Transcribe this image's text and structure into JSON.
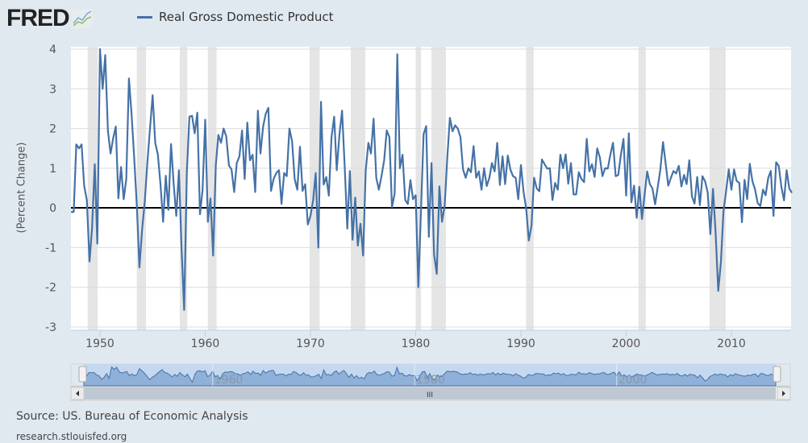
{
  "header": {
    "logo_text": "FRED",
    "logo_icon": "chart-line-icon"
  },
  "footer": {
    "source": "Source: US. Bureau of Economic Analysis",
    "link": "research.stlouisfed.org"
  },
  "navigator": {
    "tick_labels": [
      "1960",
      "1980",
      "2000"
    ],
    "scrollbar_grip": "III"
  },
  "colors": {
    "series": "#4572a7",
    "recession": "#e5e5e5",
    "background": "#e1e9f0"
  },
  "chart_data": {
    "type": "line",
    "title": "",
    "xlabel": "",
    "ylabel": "(Percent Change)",
    "ylim": [
      -3,
      4
    ],
    "xlim": [
      1947.25,
      2015.9
    ],
    "yticks": [
      "4",
      "3",
      "2",
      "1",
      "0",
      "-1",
      "-2",
      "-3"
    ],
    "xticks": [
      "1950",
      "1960",
      "1970",
      "1980",
      "1990",
      "2000",
      "2010"
    ],
    "grid": true,
    "legend": {
      "position": "top-left",
      "entries": [
        "Real Gross Domestic Product"
      ]
    },
    "frequency": "quarterly",
    "start": "1947-Q2",
    "series": [
      {
        "name": "Real Gross Domestic Product",
        "values": [
          -0.1,
          -0.1,
          1.6,
          1.5,
          1.6,
          0.55,
          0.2,
          -1.35,
          -0.5,
          1.1,
          -0.9,
          4.0,
          3.0,
          3.85,
          1.95,
          1.37,
          1.75,
          2.05,
          0.24,
          1.03,
          0.22,
          0.73,
          3.26,
          2.35,
          1.27,
          0.05,
          -1.5,
          -0.55,
          0.15,
          1.13,
          2.0,
          2.84,
          1.64,
          1.34,
          0.6,
          -0.35,
          0.81,
          -0.05,
          1.61,
          0.6,
          -0.2,
          0.95,
          -1.0,
          -2.57,
          0.9,
          2.3,
          2.32,
          1.88,
          2.4,
          -0.16,
          0.45,
          2.22,
          -0.35,
          0.24,
          -1.2,
          1.07,
          1.84,
          1.64,
          2.0,
          1.8,
          1.07,
          0.97,
          0.4,
          1.13,
          1.3,
          1.95,
          0.73,
          2.15,
          1.2,
          1.34,
          0.4,
          2.45,
          1.37,
          2.05,
          2.37,
          2.52,
          0.43,
          0.73,
          0.88,
          0.95,
          0.1,
          0.88,
          0.8,
          2.0,
          1.68,
          0.73,
          0.46,
          1.54,
          0.43,
          0.6,
          -0.42,
          -0.2,
          0.19,
          0.88,
          -1.0,
          2.67,
          0.59,
          0.78,
          0.31,
          1.78,
          2.3,
          0.95,
          1.84,
          2.45,
          1.07,
          -0.52,
          0.93,
          -0.8,
          0.26,
          -0.95,
          -0.4,
          -1.2,
          0.93,
          1.64,
          1.37,
          2.25,
          0.76,
          0.46,
          0.8,
          1.2,
          1.95,
          1.78,
          0.02,
          0.36,
          3.87,
          1.0,
          1.34,
          0.2,
          0.1,
          0.7,
          0.22,
          0.32,
          -2.0,
          -0.1,
          1.86,
          2.06,
          -0.73,
          1.13,
          -1.17,
          -1.66,
          0.54,
          -0.35,
          0.05,
          1.27,
          2.27,
          1.93,
          2.08,
          2.0,
          1.78,
          0.97,
          0.76,
          1.0,
          0.9,
          1.56,
          0.76,
          0.92,
          0.46,
          1.0,
          0.55,
          0.76,
          1.13,
          0.92,
          1.64,
          0.58,
          1.3,
          0.6,
          1.32,
          0.96,
          0.8,
          0.76,
          0.22,
          1.08,
          0.4,
          -0.01,
          -0.82,
          -0.45,
          0.76,
          0.49,
          0.42,
          1.22,
          1.1,
          0.99,
          1.0,
          0.2,
          0.63,
          0.46,
          1.34,
          1.0,
          1.35,
          0.61,
          1.13,
          0.34,
          0.34,
          0.9,
          0.73,
          0.65,
          1.74,
          0.92,
          1.1,
          0.78,
          1.5,
          1.27,
          0.8,
          1.0,
          0.99,
          1.34,
          1.64,
          0.8,
          0.83,
          1.34,
          1.74,
          0.31,
          1.88,
          0.14,
          0.56,
          -0.25,
          0.53,
          -0.28,
          0.32,
          0.92,
          0.6,
          0.49,
          0.09,
          0.53,
          0.97,
          1.66,
          1.13,
          0.56,
          0.76,
          0.93,
          0.87,
          1.06,
          0.54,
          0.83,
          0.6,
          1.2,
          0.29,
          0.11,
          0.78,
          0.07,
          0.8,
          0.67,
          0.39,
          -0.66,
          0.48,
          -0.62,
          -2.09,
          -1.36,
          -0.08,
          0.43,
          0.97,
          0.46,
          0.97,
          0.68,
          0.63,
          -0.36,
          0.71,
          0.22,
          1.11,
          0.67,
          0.46,
          0.12,
          0.05,
          0.46,
          0.32,
          0.76,
          0.93,
          -0.2,
          1.15,
          1.06,
          0.53,
          0.19,
          0.95,
          0.49,
          0.38
        ]
      }
    ],
    "recessions": [
      [
        1948.83,
        1949.79
      ],
      [
        1953.5,
        1954.37
      ],
      [
        1957.58,
        1958.29
      ],
      [
        1960.25,
        1961.08
      ],
      [
        1969.92,
        1970.87
      ],
      [
        1973.83,
        1975.21
      ],
      [
        1980.0,
        1980.5
      ],
      [
        1981.5,
        1982.87
      ],
      [
        1990.5,
        1991.21
      ],
      [
        2001.17,
        2001.87
      ],
      [
        2007.92,
        2009.46
      ]
    ]
  }
}
